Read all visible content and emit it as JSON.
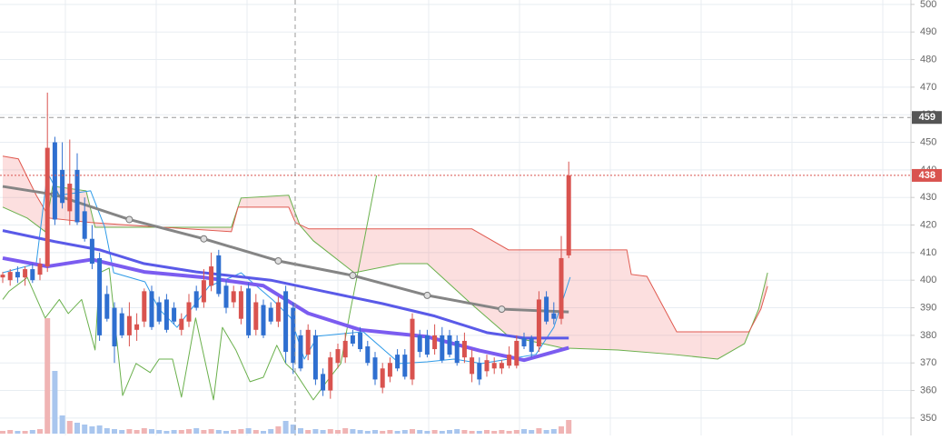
{
  "chart_data": {
    "type": "candlestick",
    "open": [
      401,
      400,
      403,
      401,
      404,
      402,
      405,
      450,
      440,
      425,
      440,
      425,
      415,
      408,
      395,
      390,
      388,
      380,
      382,
      385,
      396,
      392,
      393,
      390,
      382,
      385,
      396,
      392,
      398,
      409,
      398,
      392,
      386,
      397,
      382,
      391,
      390,
      385,
      396,
      390,
      380,
      373,
      380,
      366,
      360,
      370,
      372,
      380,
      381,
      376,
      372,
      361,
      365,
      373,
      373,
      364,
      380,
      380,
      375,
      380,
      380,
      378,
      372,
      366,
      370,
      367,
      368,
      368,
      369,
      369,
      379,
      379,
      376,
      394,
      388,
      386,
      409
    ],
    "high": [
      403,
      404,
      405,
      405,
      406,
      408,
      468,
      452,
      450,
      451,
      446,
      430,
      420,
      410,
      398,
      392,
      390,
      392,
      388,
      397,
      398,
      394,
      395,
      392,
      388,
      395,
      398,
      404,
      410,
      411,
      400,
      398,
      398,
      399,
      395,
      393,
      392,
      394,
      398,
      392,
      382,
      384,
      382,
      368,
      374,
      377,
      381,
      382,
      383,
      378,
      374,
      370,
      372,
      375,
      375,
      388,
      382,
      382,
      384,
      383,
      382,
      380,
      381,
      375,
      372,
      373,
      372,
      371,
      376,
      380,
      381,
      380,
      396,
      396,
      392,
      416,
      443
    ],
    "low": [
      399,
      398,
      399,
      398,
      399,
      400,
      403,
      420,
      426,
      420,
      420,
      414,
      404,
      378,
      385,
      370,
      379,
      376,
      378,
      383,
      382,
      384,
      381,
      384,
      380,
      383,
      389,
      390,
      396,
      394,
      388,
      390,
      384,
      379,
      380,
      379,
      384,
      383,
      370,
      366,
      367,
      371,
      362,
      358,
      357,
      368,
      370,
      376,
      374,
      369,
      362,
      359,
      363,
      367,
      364,
      362,
      372,
      372,
      373,
      370,
      372,
      369,
      370,
      363,
      362,
      365,
      366,
      366,
      368,
      368,
      375,
      372,
      374,
      384,
      384,
      384,
      408
    ],
    "close": [
      402,
      403,
      401,
      404,
      400,
      406,
      448,
      422,
      428,
      435,
      421,
      415,
      406,
      380,
      386,
      376,
      380,
      387,
      384,
      396,
      383,
      385,
      382,
      385,
      386,
      392,
      390,
      400,
      405,
      395,
      390,
      396,
      396,
      380,
      392,
      380,
      385,
      392,
      374,
      370,
      368,
      382,
      364,
      360,
      372,
      375,
      378,
      377,
      375,
      370,
      364,
      368,
      370,
      368,
      365,
      386,
      374,
      373,
      380,
      371,
      373,
      370,
      378,
      372,
      364,
      371,
      370,
      370,
      373,
      378,
      376,
      374,
      393,
      385,
      386,
      408,
      438
    ],
    "volume": [
      3,
      4,
      3,
      3,
      4,
      5,
      127,
      69,
      20,
      14,
      12,
      10,
      8,
      9,
      6,
      5,
      4,
      5,
      4,
      6,
      5,
      4,
      3,
      4,
      4,
      5,
      6,
      4,
      5,
      4,
      3,
      4,
      5,
      6,
      4,
      3,
      5,
      8,
      14,
      10,
      6,
      4,
      5,
      4,
      5,
      4,
      6,
      5,
      4,
      3,
      4,
      3,
      4,
      3,
      4,
      5,
      4,
      3,
      4,
      3,
      4,
      5,
      4,
      3,
      3,
      4,
      3,
      4,
      3,
      4,
      5,
      4,
      6,
      4,
      5,
      8,
      15
    ],
    "up_color": "#d9534f",
    "down_color": "#2f6fd0",
    "volume_up_color": "#f0b4b4",
    "volume_down_color": "#a9c6ee",
    "ylim": [
      343.7,
      501.6
    ],
    "yticks": [
      350,
      360,
      370,
      380,
      390,
      400,
      410,
      420,
      430,
      440,
      450,
      460,
      470,
      480,
      490,
      500
    ],
    "grid": true,
    "cloud": {
      "fill": "rgba(240,110,110,0.22)",
      "span_a": {
        "color": "#6ab04c",
        "x": [
          0,
          3.3,
          5.7,
          6.7,
          11.2,
          12.4,
          30.7,
          32,
          38.4,
          39.9,
          41.7,
          47.2,
          53.3,
          57,
          63,
          67.9,
          75.2,
          82.6,
          89.9,
          96,
          99.6,
          101.5,
          102.7
        ],
        "values": [
          426.5,
          422.5,
          417.6,
          434.1,
          432.4,
          419.2,
          419.2,
          429.8,
          430.8,
          419.9,
          414.3,
          402.7,
          406,
          406,
          391.2,
          379.7,
          375.4,
          374.7,
          373.1,
          371.4,
          377,
          389.5,
          402.7
        ]
      },
      "span_b": {
        "color": "#e05a50",
        "x": [
          0,
          2.1,
          4.5,
          6.3,
          11.8,
          30.7,
          31.6,
          38.4,
          39.3,
          41.1,
          63,
          67.9,
          83.8,
          84.4,
          86.5,
          90.5,
          100.2,
          101.8,
          102.7
        ],
        "values": [
          445,
          444,
          430.8,
          422.5,
          420.9,
          417.6,
          426.5,
          426.5,
          420.9,
          418.6,
          418.6,
          411,
          411,
          402.1,
          401.4,
          381.3,
          381.3,
          389.5,
          397.8
        ]
      }
    },
    "lines": [
      {
        "color": "#2f9be8",
        "width": 1,
        "x": [
          0,
          4.5,
          6,
          7.6,
          11.8,
          13.7,
          14.9,
          19.1,
          21,
          23.4,
          27.7,
          30.7,
          32,
          36.2,
          38.7,
          40.5,
          42.3,
          48.4,
          53.3,
          57,
          60.6,
          64.3,
          67.9,
          71.6,
          74,
          76.2
        ],
        "values": [
          402.7,
          406,
          439,
          430.8,
          432.4,
          419.2,
          402.7,
          399.4,
          389.5,
          382.9,
          397.8,
          401.1,
          402.7,
          393,
          386.3,
          371.4,
          379.7,
          381.3,
          369.8,
          370.4,
          371.4,
          369.8,
          371.4,
          373.1,
          382.9,
          401.1
        ]
      },
      {
        "color": "#6ab04c",
        "width": 1,
        "x": [
          0,
          0.85,
          3.3,
          5.7,
          7.6,
          8.8,
          10.6,
          12.4,
          13,
          14.3,
          16.1,
          17.9,
          19.8,
          21,
          22.8,
          24,
          25.9,
          28.3,
          29.5,
          31.3,
          33.2,
          35,
          36.8,
          38,
          39.3,
          41.7,
          43.5,
          45.4,
          46.6,
          48.4,
          50.2
        ],
        "values": [
          393,
          396,
          401,
          386.3,
          393,
          387.9,
          393,
          374.7,
          402.7,
          404.4,
          358.2,
          369.8,
          366.5,
          371.4,
          371.4,
          357.6,
          386.3,
          356.6,
          382.9,
          374.7,
          363.2,
          364.8,
          376.4,
          369.8,
          366.5,
          356.6,
          363.2,
          369.8,
          387.9,
          412.6,
          438
        ]
      },
      {
        "color": "#7b5cf0",
        "width": 4,
        "x": [
          0,
          6,
          12,
          19,
          27,
          35,
          41,
          48,
          57,
          64,
          70,
          76
        ],
        "values": [
          408,
          405,
          407.5,
          403,
          401,
          398,
          388,
          382,
          379.5,
          374.5,
          371,
          375.5
        ]
      },
      {
        "color": "#5a5ae8",
        "width": 3,
        "x": [
          0,
          7,
          13,
          19,
          26,
          36,
          43,
          51,
          58,
          65,
          70,
          76
        ],
        "values": [
          418,
          414,
          411,
          406,
          403,
          400,
          396,
          391.5,
          387,
          381,
          379,
          379
        ]
      },
      {
        "color": "#858585",
        "width": 3,
        "markers": true,
        "x": [
          0,
          7,
          17,
          27,
          37,
          47,
          57,
          67,
          76
        ],
        "values": [
          434,
          431,
          422,
          415,
          407,
          401.7,
          394.5,
          389.5,
          388.5
        ]
      }
    ],
    "price_lines": [
      {
        "value": 459,
        "color": "#999",
        "label_color": "#555",
        "dash": "5,4"
      },
      {
        "value": 438,
        "color": "#d9534f",
        "label_color": "#d9534f",
        "dash": "2,2"
      }
    ]
  }
}
